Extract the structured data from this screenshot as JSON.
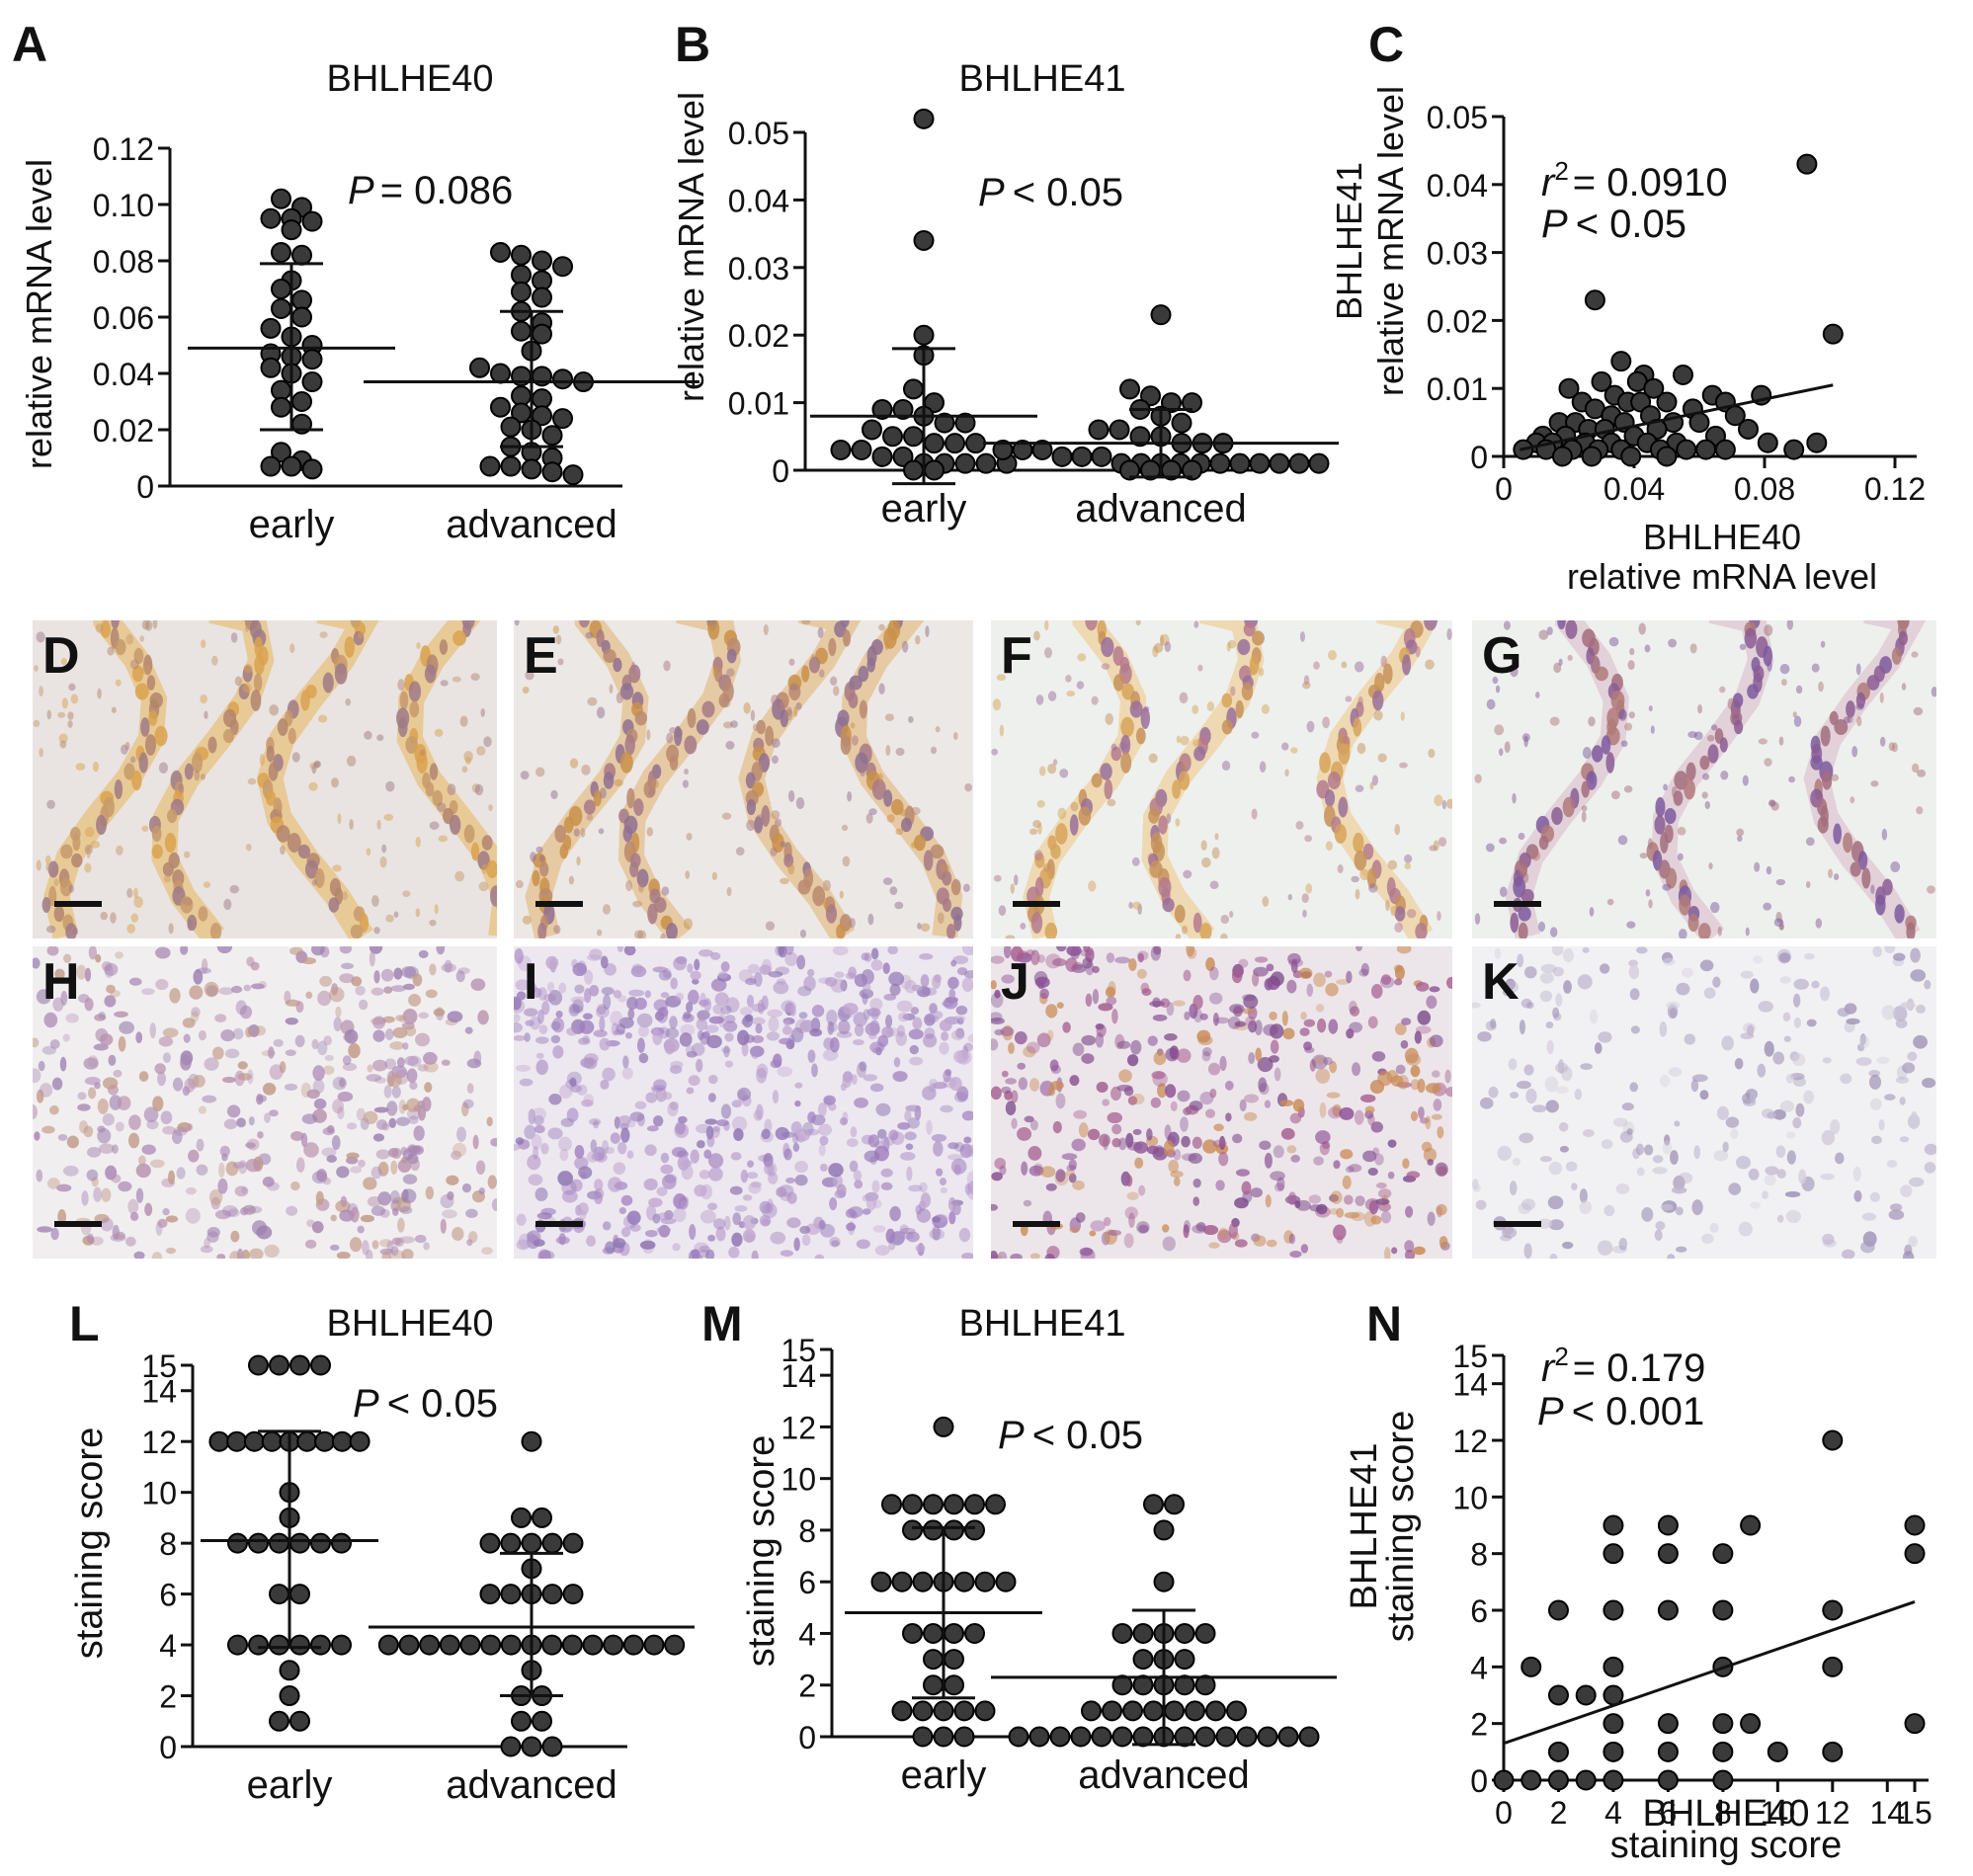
{
  "figure": {
    "panels": {
      "A": {
        "letter": "A",
        "title": "BHLHE40",
        "ylabel": "relative mRNA level",
        "stat": "= 0.086",
        "stat_p": "P"
      },
      "B": {
        "letter": "B",
        "title": "BHLHE41",
        "ylabel": "relative mRNA level",
        "stat": "< 0.05",
        "stat_p": "P"
      },
      "C": {
        "letter": "C",
        "ylabel1": "BHLHE41",
        "ylabel2": "relative mRNA level",
        "xlabel1": "BHLHE40",
        "xlabel2": "relative mRNA level",
        "r2": "= 0.0910",
        "r": "r",
        "sup": "2",
        "stat": "< 0.05",
        "stat_p": "P"
      },
      "L": {
        "letter": "L",
        "title": "BHLHE40",
        "ylabel": "staining score",
        "stat": "< 0.05",
        "stat_p": "P"
      },
      "M": {
        "letter": "M",
        "title": "BHLHE41",
        "ylabel": "staining score",
        "stat": "< 0.05",
        "stat_p": "P"
      },
      "N": {
        "letter": "N",
        "ylabel1": "BHLHE41",
        "ylabel2": "staining score",
        "xlabel1": "BHLHE40",
        "xlabel2": "staining score",
        "r2": "= 0.179",
        "r": "r",
        "sup": "2",
        "stat": "< 0.001",
        "stat_p": "P"
      }
    },
    "micrographs": [
      {
        "letter": "D",
        "stain": "orange-strong",
        "pattern": "glands"
      },
      {
        "letter": "E",
        "stain": "orange-medium",
        "pattern": "glands"
      },
      {
        "letter": "F",
        "stain": "orange-light",
        "pattern": "glands-open"
      },
      {
        "letter": "G",
        "stain": "violet",
        "pattern": "glands-open"
      },
      {
        "letter": "H",
        "stain": "violet-light",
        "pattern": "diffuse"
      },
      {
        "letter": "I",
        "stain": "violet-dense",
        "pattern": "diffuse"
      },
      {
        "letter": "J",
        "stain": "violet-orange",
        "pattern": "diffuse"
      },
      {
        "letter": "K",
        "stain": "pale",
        "pattern": "diffuse"
      }
    ]
  },
  "chart_data": [
    {
      "panel": "A",
      "type": "scatter",
      "title": "BHLHE40",
      "ylabel": "relative mRNA level",
      "categories": [
        "early",
        "advanced"
      ],
      "yticks": [
        "0",
        "0.02",
        "0.04",
        "0.06",
        "0.08",
        "0.10",
        "0.12"
      ],
      "ylim": [
        0,
        0.12
      ],
      "groups": [
        {
          "category": "early",
          "mean": 0.049,
          "sd_low": 0.02,
          "sd_high": 0.079,
          "values": [
            0.102,
            0.099,
            0.095,
            0.095,
            0.094,
            0.091,
            0.083,
            0.082,
            0.073,
            0.07,
            0.066,
            0.063,
            0.06,
            0.056,
            0.053,
            0.05,
            0.047,
            0.046,
            0.045,
            0.042,
            0.04,
            0.037,
            0.034,
            0.03,
            0.028,
            0.022,
            0.012,
            0.009,
            0.007,
            0.007,
            0.006
          ]
        },
        {
          "category": "advanced",
          "mean": 0.037,
          "sd_low": 0.014,
          "sd_high": 0.062,
          "values": [
            0.083,
            0.082,
            0.08,
            0.078,
            0.075,
            0.073,
            0.069,
            0.067,
            0.062,
            0.058,
            0.055,
            0.054,
            0.048,
            0.042,
            0.04,
            0.039,
            0.039,
            0.038,
            0.037,
            0.032,
            0.031,
            0.028,
            0.026,
            0.025,
            0.024,
            0.021,
            0.02,
            0.018,
            0.014,
            0.012,
            0.01,
            0.007,
            0.007,
            0.006,
            0.005,
            0.004
          ]
        }
      ],
      "stat": "P = 0.086"
    },
    {
      "panel": "B",
      "type": "scatter",
      "title": "BHLHE41",
      "ylabel": "relative mRNA level",
      "categories": [
        "early",
        "advanced"
      ],
      "yticks": [
        "0",
        "0.01",
        "0.02",
        "0.03",
        "0.04",
        "0.05"
      ],
      "ylim": [
        0,
        0.05
      ],
      "groups": [
        {
          "category": "early",
          "mean": 0.008,
          "sd_low": -0.002,
          "sd_high": 0.018,
          "values": [
            0.052,
            0.034,
            0.02,
            0.017,
            0.012,
            0.01,
            0.009,
            0.009,
            0.008,
            0.007,
            0.007,
            0.006,
            0.005,
            0.005,
            0.004,
            0.004,
            0.004,
            0.003,
            0.003,
            0.002,
            0.002,
            0.001,
            0.001,
            0.001,
            0.001,
            0.001,
            0.0,
            0.0
          ]
        },
        {
          "category": "advanced",
          "mean": 0.004,
          "sd_low": -0.001,
          "sd_high": 0.009,
          "values": [
            0.023,
            0.012,
            0.011,
            0.01,
            0.01,
            0.009,
            0.008,
            0.007,
            0.006,
            0.006,
            0.005,
            0.005,
            0.004,
            0.004,
            0.004,
            0.003,
            0.003,
            0.003,
            0.002,
            0.002,
            0.002,
            0.001,
            0.001,
            0.001,
            0.001,
            0.001,
            0.001,
            0.001,
            0.001,
            0.001,
            0.001,
            0.001,
            0.0,
            0.0,
            0.0,
            0.0
          ]
        }
      ],
      "stat": "P < 0.05"
    },
    {
      "panel": "C",
      "type": "scatter",
      "xlabel": "BHLHE40 relative mRNA level",
      "ylabel": "BHLHE41 relative mRNA level",
      "xticks": [
        "0",
        "0.04",
        "0.08",
        "0.12"
      ],
      "yticks": [
        "0",
        "0.01",
        "0.02",
        "0.03",
        "0.04",
        "0.05"
      ],
      "xlim": [
        0,
        0.12
      ],
      "ylim": [
        0,
        0.05
      ],
      "points": [
        [
          0.093,
          0.043
        ],
        [
          0.028,
          0.023
        ],
        [
          0.101,
          0.018
        ],
        [
          0.036,
          0.014
        ],
        [
          0.043,
          0.012
        ],
        [
          0.055,
          0.012
        ],
        [
          0.03,
          0.011
        ],
        [
          0.041,
          0.011
        ],
        [
          0.046,
          0.01
        ],
        [
          0.02,
          0.01
        ],
        [
          0.034,
          0.009
        ],
        [
          0.064,
          0.009
        ],
        [
          0.079,
          0.009
        ],
        [
          0.05,
          0.008
        ],
        [
          0.068,
          0.008
        ],
        [
          0.024,
          0.008
        ],
        [
          0.038,
          0.008
        ],
        [
          0.042,
          0.008
        ],
        [
          0.028,
          0.007
        ],
        [
          0.058,
          0.007
        ],
        [
          0.033,
          0.006
        ],
        [
          0.045,
          0.006
        ],
        [
          0.071,
          0.006
        ],
        [
          0.017,
          0.005
        ],
        [
          0.022,
          0.005
        ],
        [
          0.037,
          0.005
        ],
        [
          0.052,
          0.005
        ],
        [
          0.06,
          0.005
        ],
        [
          0.026,
          0.004
        ],
        [
          0.031,
          0.004
        ],
        [
          0.047,
          0.004
        ],
        [
          0.075,
          0.004
        ],
        [
          0.012,
          0.003
        ],
        [
          0.019,
          0.003
        ],
        [
          0.04,
          0.003
        ],
        [
          0.065,
          0.003
        ],
        [
          0.01,
          0.002
        ],
        [
          0.015,
          0.002
        ],
        [
          0.025,
          0.002
        ],
        [
          0.033,
          0.002
        ],
        [
          0.044,
          0.002
        ],
        [
          0.053,
          0.002
        ],
        [
          0.081,
          0.002
        ],
        [
          0.006,
          0.001
        ],
        [
          0.013,
          0.001
        ],
        [
          0.021,
          0.001
        ],
        [
          0.029,
          0.001
        ],
        [
          0.036,
          0.001
        ],
        [
          0.048,
          0.001
        ],
        [
          0.056,
          0.001
        ],
        [
          0.062,
          0.001
        ],
        [
          0.068,
          0.001
        ],
        [
          0.089,
          0.001
        ],
        [
          0.096,
          0.002
        ],
        [
          0.018,
          0.0
        ],
        [
          0.027,
          0.0
        ],
        [
          0.039,
          0.0
        ],
        [
          0.05,
          0.0
        ]
      ],
      "fit": {
        "x": [
          0.005,
          0.101
        ],
        "y": [
          0.001,
          0.0105
        ]
      },
      "stat_r2": "r2 = 0.0910",
      "stat": "P < 0.05"
    },
    {
      "panel": "L",
      "type": "scatter",
      "title": "BHLHE40",
      "ylabel": "staining score",
      "categories": [
        "early",
        "advanced"
      ],
      "yticks": [
        "0",
        "2",
        "4",
        "6",
        "8",
        "10",
        "12",
        "14",
        "15"
      ],
      "ylim": [
        0,
        15
      ],
      "groups": [
        {
          "category": "early",
          "mean": 8.1,
          "sd_low": 3.9,
          "sd_high": 12.4,
          "values": [
            15,
            15,
            15,
            15,
            12,
            12,
            12,
            12,
            12,
            12,
            12,
            12,
            12,
            10,
            9,
            8,
            8,
            8,
            8,
            8,
            8,
            6,
            6,
            4,
            4,
            4,
            4,
            4,
            4,
            3,
            2,
            1,
            1
          ]
        },
        {
          "category": "advanced",
          "mean": 4.7,
          "sd_low": 2.0,
          "sd_high": 7.6,
          "values": [
            12,
            9,
            9,
            8,
            8,
            8,
            8,
            8,
            7,
            6,
            6,
            6,
            6,
            6,
            4,
            4,
            4,
            4,
            4,
            4,
            4,
            4,
            4,
            4,
            4,
            4,
            4,
            4,
            4,
            3,
            2,
            2,
            1,
            1,
            0,
            0,
            0
          ]
        }
      ],
      "stat": "P < 0.05"
    },
    {
      "panel": "M",
      "type": "scatter",
      "title": "BHLHE41",
      "ylabel": "staining score",
      "categories": [
        "early",
        "advanced"
      ],
      "yticks": [
        "0",
        "2",
        "4",
        "6",
        "8",
        "10",
        "12",
        "14",
        "15"
      ],
      "ylim": [
        0,
        15
      ],
      "groups": [
        {
          "category": "early",
          "mean": 4.8,
          "sd_low": 1.5,
          "sd_high": 8.1,
          "values": [
            12,
            9,
            9,
            9,
            9,
            9,
            9,
            8,
            8,
            8,
            8,
            6,
            6,
            6,
            6,
            6,
            6,
            6,
            4,
            4,
            4,
            4,
            3,
            3,
            2,
            2,
            1,
            1,
            1,
            1,
            1,
            0,
            0,
            0
          ]
        },
        {
          "category": "advanced",
          "mean": 2.3,
          "sd_low": -0.3,
          "sd_high": 4.9,
          "values": [
            9,
            9,
            8,
            6,
            4,
            4,
            4,
            4,
            4,
            3,
            3,
            3,
            2,
            2,
            2,
            2,
            2,
            1,
            1,
            1,
            1,
            1,
            1,
            1,
            1,
            0,
            0,
            0,
            0,
            0,
            0,
            0,
            0,
            0,
            0,
            0,
            0,
            0,
            0,
            0
          ]
        }
      ],
      "stat": "P < 0.05"
    },
    {
      "panel": "N",
      "type": "scatter",
      "xlabel": "BHLHE40 staining score",
      "ylabel": "BHLHE41 staining score",
      "xticks": [
        "0",
        "2",
        "4",
        "6",
        "8",
        "10",
        "12",
        "14",
        "15"
      ],
      "yticks": [
        "0",
        "2",
        "4",
        "6",
        "8",
        "10",
        "12",
        "14",
        "15"
      ],
      "xlim": [
        0,
        15
      ],
      "ylim": [
        0,
        15
      ],
      "points": [
        [
          0,
          0
        ],
        [
          1,
          0
        ],
        [
          1,
          4
        ],
        [
          2,
          0
        ],
        [
          2,
          1
        ],
        [
          2,
          3
        ],
        [
          2,
          6
        ],
        [
          3,
          0
        ],
        [
          3,
          3
        ],
        [
          4,
          0
        ],
        [
          4,
          1
        ],
        [
          4,
          2
        ],
        [
          4,
          3
        ],
        [
          4,
          4
        ],
        [
          4,
          6
        ],
        [
          4,
          8
        ],
        [
          4,
          9
        ],
        [
          6,
          0
        ],
        [
          6,
          1
        ],
        [
          6,
          2
        ],
        [
          6,
          6
        ],
        [
          6,
          8
        ],
        [
          6,
          9
        ],
        [
          8,
          0
        ],
        [
          8,
          1
        ],
        [
          8,
          2
        ],
        [
          8,
          4
        ],
        [
          8,
          6
        ],
        [
          8,
          8
        ],
        [
          9,
          2
        ],
        [
          9,
          9
        ],
        [
          10,
          1
        ],
        [
          12,
          1
        ],
        [
          12,
          4
        ],
        [
          12,
          6
        ],
        [
          12,
          12
        ],
        [
          15,
          2
        ],
        [
          15,
          8
        ],
        [
          15,
          9
        ]
      ],
      "fit": {
        "x": [
          0,
          15
        ],
        "y": [
          1.3,
          6.3
        ]
      },
      "stat_r2": "r2 = 0.179",
      "stat": "P < 0.001"
    }
  ]
}
